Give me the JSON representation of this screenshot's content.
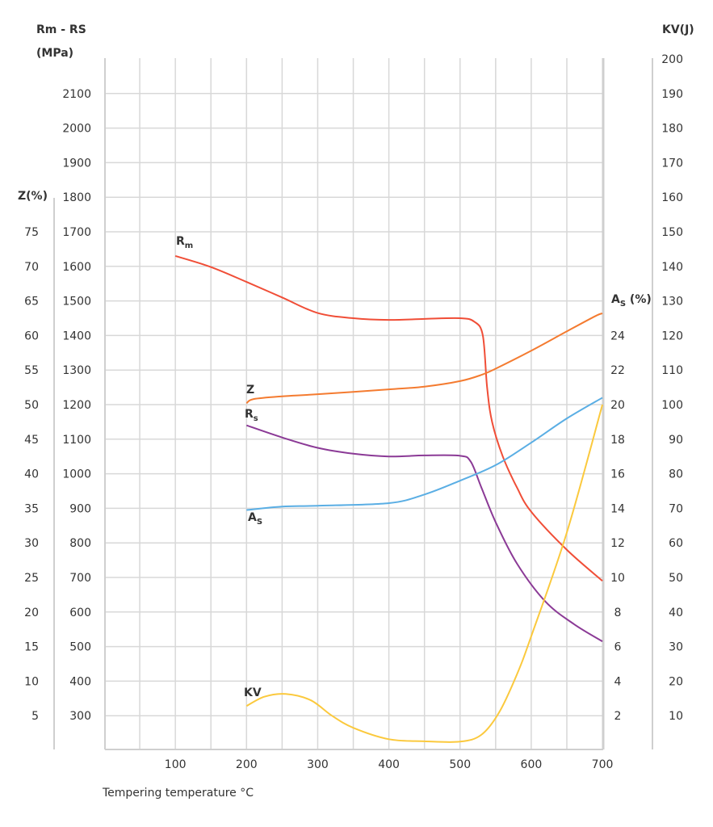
{
  "chart_data": {
    "type": "line",
    "xlabel": "Tempering temperature °C",
    "x_ticks": [
      100,
      200,
      300,
      400,
      500,
      600,
      700
    ],
    "xlim": [
      0,
      700
    ],
    "axes": {
      "left_outer": {
        "title": "Z(%)",
        "ticks": [
          5,
          10,
          15,
          20,
          25,
          30,
          35,
          40,
          45,
          50,
          55,
          60,
          65,
          70,
          75
        ]
      },
      "left_inner": {
        "title_main": "Rm - RS",
        "title_parts": [
          "R",
          "m",
          " - R",
          "S"
        ],
        "unit": "(MPa)",
        "ticks": [
          300,
          400,
          500,
          600,
          700,
          800,
          900,
          1000,
          1100,
          1200,
          1300,
          1400,
          1500,
          1600,
          1700,
          1800,
          1900,
          2000,
          2100
        ],
        "ylim": [
          200,
          2200
        ]
      },
      "right_inner": {
        "title": "AS (%)",
        "title_parts": [
          "A",
          "S",
          " (%)"
        ],
        "ticks": [
          2,
          4,
          6,
          8,
          10,
          12,
          14,
          16,
          18,
          20,
          22,
          24
        ]
      },
      "right_outer": {
        "title": "KV(J)",
        "ticks": [
          10,
          20,
          30,
          40,
          50,
          60,
          70,
          80,
          90,
          100,
          110,
          120,
          130,
          140,
          150,
          160,
          170,
          180,
          190,
          200
        ]
      }
    },
    "series": [
      {
        "name": "Rm",
        "label_parts": [
          "R",
          "m"
        ],
        "axis": "MPa",
        "color": "#f04e37",
        "x": [
          100,
          150,
          200,
          250,
          300,
          350,
          400,
          450,
          500,
          520,
          532,
          538,
          545,
          560,
          580,
          600,
          650,
          700
        ],
        "y": [
          1630,
          1598,
          1555,
          1510,
          1465,
          1450,
          1445,
          1448,
          1450,
          1440,
          1400,
          1250,
          1150,
          1050,
          960,
          890,
          780,
          690
        ]
      },
      {
        "name": "Z",
        "label_parts": [
          "Z",
          ""
        ],
        "axis": "Z",
        "color": "#f47b30",
        "x": [
          200,
          210,
          250,
          300,
          400,
          450,
          500,
          530,
          550,
          600,
          650,
          690,
          700
        ],
        "y": [
          50.2,
          50.8,
          51.2,
          51.5,
          52.2,
          52.6,
          53.4,
          54.3,
          55.2,
          57.8,
          60.6,
          62.8,
          63.2
        ]
      },
      {
        "name": "Rs",
        "label_parts": [
          "R",
          "s"
        ],
        "axis": "MPa",
        "color": "#8b3a96",
        "x": [
          200,
          250,
          300,
          350,
          400,
          450,
          500,
          515,
          530,
          550,
          580,
          620,
          660,
          700
        ],
        "y": [
          1140,
          1105,
          1075,
          1058,
          1050,
          1053,
          1052,
          1035,
          960,
          860,
          740,
          630,
          565,
          515
        ]
      },
      {
        "name": "AS",
        "label_parts": [
          "A",
          "S"
        ],
        "axis": "AS",
        "color": "#5aaee4",
        "x": [
          200,
          250,
          300,
          400,
          450,
          500,
          550,
          600,
          650,
          700
        ],
        "y": [
          13.9,
          14.1,
          14.15,
          14.3,
          14.8,
          15.6,
          16.5,
          17.8,
          19.2,
          20.4
        ]
      },
      {
        "name": "KV",
        "label_parts": [
          "KV",
          ""
        ],
        "axis": "KV",
        "color": "#fbc93d",
        "x": [
          200,
          225,
          255,
          290,
          320,
          350,
          400,
          450,
          500,
          530,
          555,
          580,
          600,
          650,
          700
        ],
        "y": [
          12.8,
          15.5,
          16.3,
          14.5,
          10,
          6.5,
          3.2,
          2.6,
          2.5,
          4.5,
          11,
          22,
          33,
          63,
          100
        ]
      }
    ]
  }
}
